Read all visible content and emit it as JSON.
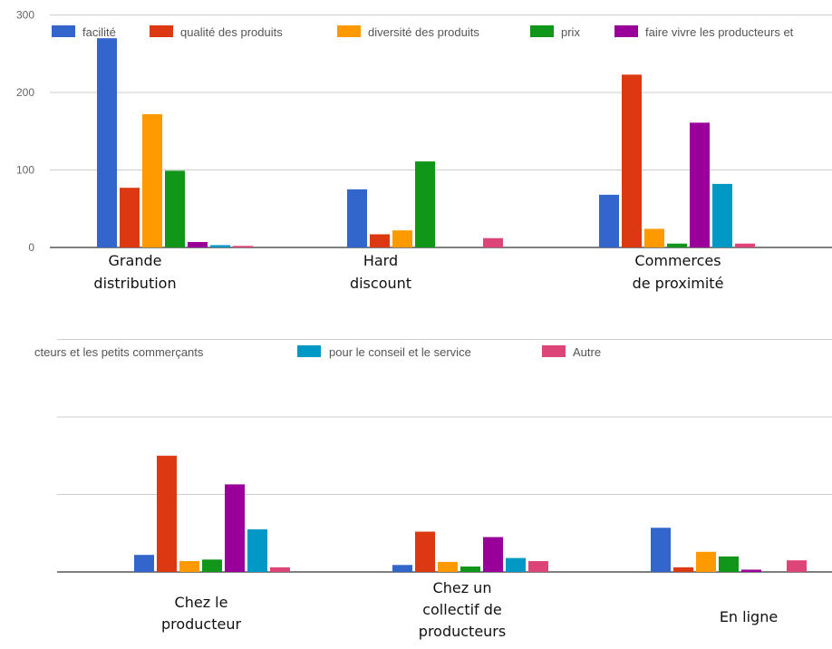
{
  "chart_data": [
    {
      "type": "bar",
      "categories": [
        "Grande distribution",
        "Hard discount",
        "Commerces de proximité"
      ],
      "category_labels": [
        [
          "Grande",
          "distribution"
        ],
        [
          "Hard",
          "discount"
        ],
        [
          "Commerces",
          "de proximité"
        ]
      ],
      "ylim": [
        0,
        300
      ],
      "yticks": [
        "0",
        "100",
        "200",
        "300"
      ],
      "grid": true,
      "legend_position": "top",
      "legend_labels": [
        "facilité",
        "qualité des produits",
        "diversité des produits",
        "prix",
        "faire vivre les producteurs et"
      ],
      "series": [
        {
          "name": "facilité",
          "color": "#3366cc",
          "values": [
            270,
            75,
            68
          ]
        },
        {
          "name": "qualité des produits",
          "color": "#dc3912",
          "values": [
            77,
            17,
            223
          ]
        },
        {
          "name": "diversité des produits",
          "color": "#ff9900",
          "values": [
            172,
            22,
            24
          ]
        },
        {
          "name": "prix",
          "color": "#109618",
          "values": [
            99,
            111,
            5
          ]
        },
        {
          "name": "faire vivre les producteurs et les petits commerçants",
          "color": "#990099",
          "values": [
            7,
            0,
            161
          ]
        },
        {
          "name": "pour le conseil et le service",
          "color": "#0099c6",
          "values": [
            3,
            0,
            82
          ]
        },
        {
          "name": "Autre",
          "color": "#dd4477",
          "values": [
            2,
            12,
            5
          ]
        }
      ]
    },
    {
      "type": "bar",
      "categories": [
        "Chez le producteur",
        "Chez un collectif de producteurs",
        "En ligne"
      ],
      "category_labels": [
        [
          "Chez le",
          "producteur"
        ],
        [
          "Chez un",
          "collectif de",
          "producteurs"
        ],
        [
          "En ligne"
        ]
      ],
      "ylim": [
        0,
        300
      ],
      "grid": true,
      "legend_position": "top",
      "legend_labels": [
        "cteurs et les petits commerçants",
        "pour le conseil et le service",
        "Autre"
      ],
      "series": [
        {
          "name": "facilité",
          "color": "#3366cc",
          "values": [
            22,
            9,
            57
          ]
        },
        {
          "name": "qualité des produits",
          "color": "#dc3912",
          "values": [
            150,
            52,
            6
          ]
        },
        {
          "name": "diversité des produits",
          "color": "#ff9900",
          "values": [
            14,
            13,
            26
          ]
        },
        {
          "name": "prix",
          "color": "#109618",
          "values": [
            16,
            7,
            20
          ]
        },
        {
          "name": "faire vivre les producteurs et les petits commerçants",
          "color": "#990099",
          "values": [
            113,
            45,
            3
          ]
        },
        {
          "name": "pour le conseil et le service",
          "color": "#0099c6",
          "values": [
            55,
            18,
            0
          ]
        },
        {
          "name": "Autre",
          "color": "#dd4477",
          "values": [
            6,
            14,
            15
          ]
        }
      ]
    }
  ]
}
